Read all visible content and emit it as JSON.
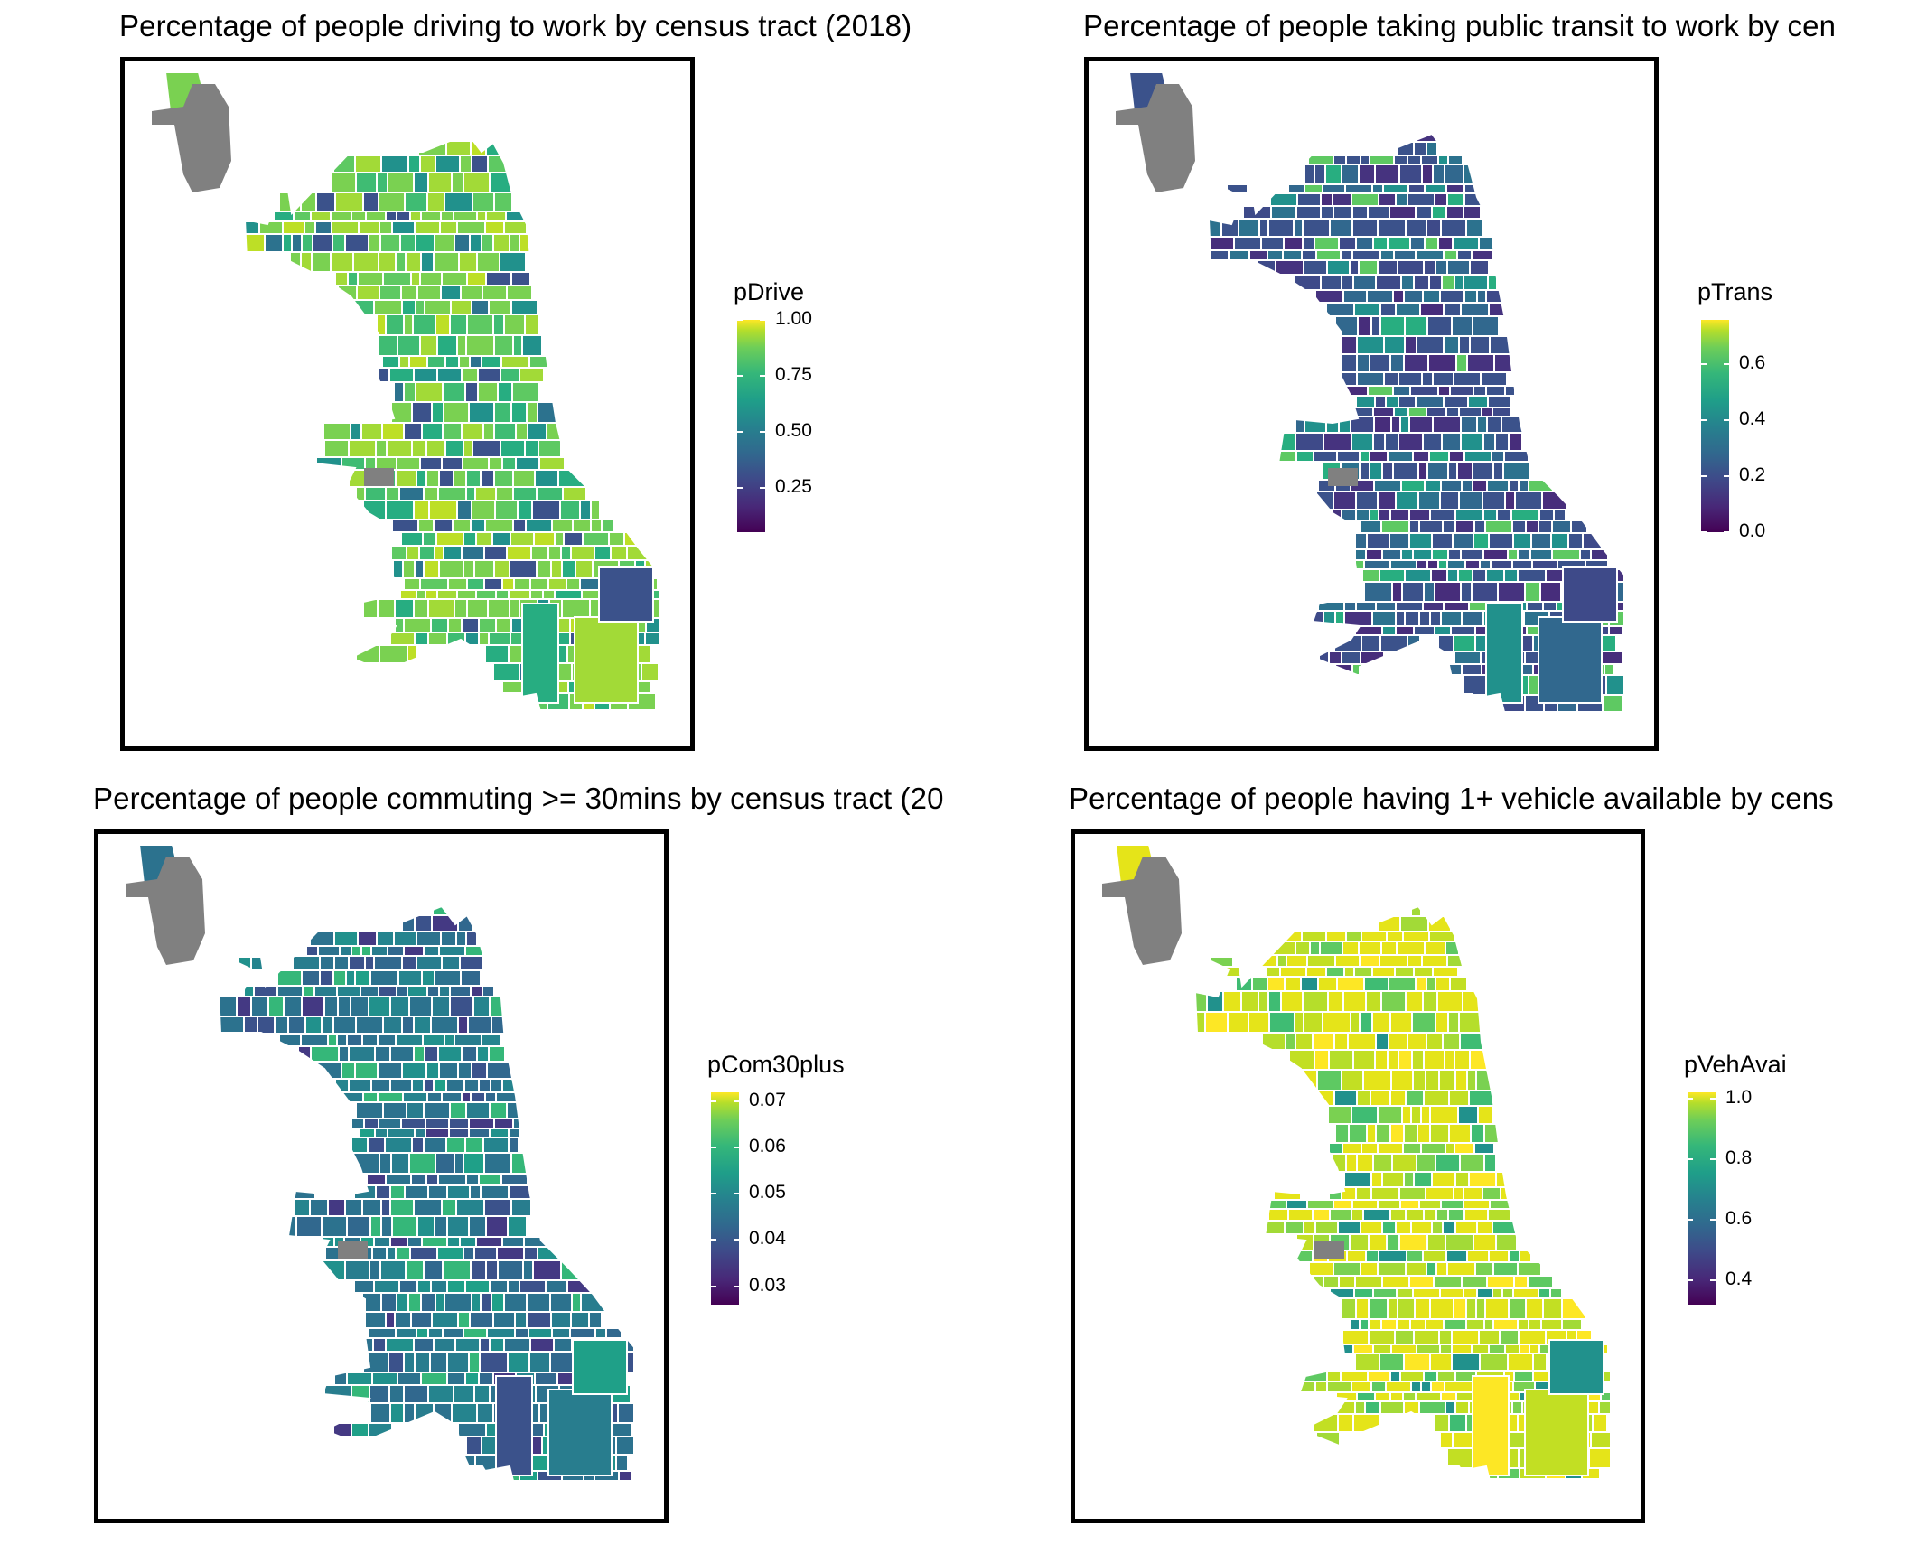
{
  "panels": [
    {
      "title": "Percentage of people driving to work by census tract (2018)",
      "legend": {
        "title": "pDrive",
        "ticks": [
          "1.00",
          "0.75",
          "0.50",
          "0.25"
        ],
        "tick_values": [
          1.0,
          0.75,
          0.5,
          0.25
        ],
        "min": 0.05,
        "max": 1.0
      },
      "dominant_color": "#86d549",
      "palette": [
        "#7ad151",
        "#a2da37",
        "#5ec962",
        "#3fbc73",
        "#27ad81",
        "#21918c",
        "#2c728e",
        "#3b528b",
        "#bddf26"
      ]
    },
    {
      "title": "Percentage of people taking public transit to work by cen",
      "legend": {
        "title": "pTrans",
        "ticks": [
          "0.6",
          "0.4",
          "0.2",
          "0.0"
        ],
        "tick_values": [
          0.6,
          0.4,
          0.2,
          0.0
        ],
        "min": 0.0,
        "max": 0.76
      },
      "dominant_color": "#3b528b",
      "palette": [
        "#3b528b",
        "#31688e",
        "#46337f",
        "#2c728e",
        "#21918c",
        "#472d7b",
        "#28ae80",
        "#3e4a89",
        "#5ec962"
      ]
    },
    {
      "title": "Percentage of people commuting >= 30mins by census tract (20",
      "legend": {
        "title": "pCom30plus",
        "ticks": [
          "0.07",
          "0.06",
          "0.05",
          "0.04",
          "0.03"
        ],
        "tick_values": [
          0.07,
          0.06,
          0.05,
          0.04,
          0.03
        ],
        "min": 0.026,
        "max": 0.072
      },
      "dominant_color": "#2c728e",
      "palette": [
        "#2c728e",
        "#287d8e",
        "#31688e",
        "#21918c",
        "#3b528b",
        "#25848e",
        "#443983",
        "#1fa088",
        "#35b779"
      ]
    },
    {
      "title": "Percentage of people having 1+ vehicle available by cens",
      "legend": {
        "title": "pVehAvai",
        "ticks": [
          "1.0",
          "0.8",
          "0.6",
          "0.4"
        ],
        "tick_values": [
          1.0,
          0.8,
          0.6,
          0.4
        ],
        "min": 0.32,
        "max": 1.02
      },
      "dominant_color": "#d8e219",
      "palette": [
        "#e5e419",
        "#c2df23",
        "#a2da37",
        "#7ad151",
        "#fde725",
        "#5ec962",
        "#3fbc73",
        "#21918c",
        "#b5de2b"
      ]
    }
  ],
  "colors": {
    "missing": "#808080",
    "tract_border": "#ffffff",
    "frame": "#000000"
  }
}
